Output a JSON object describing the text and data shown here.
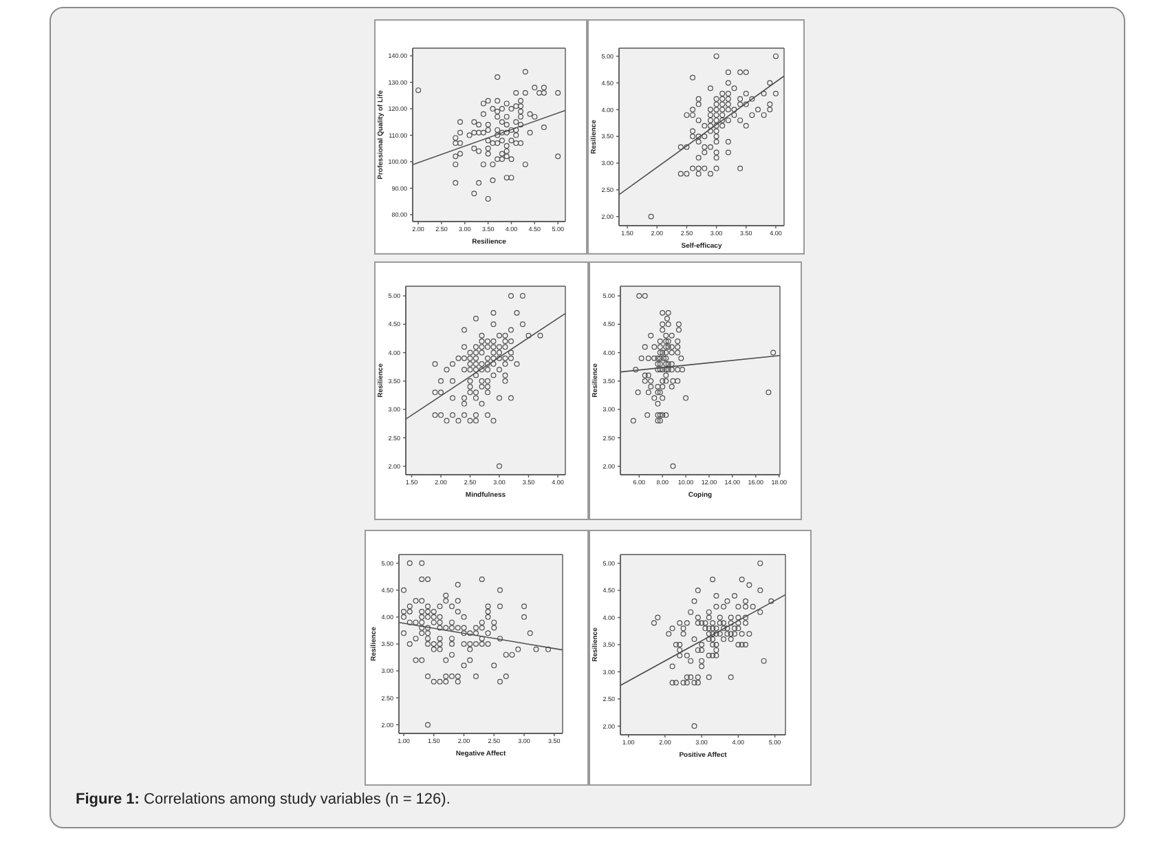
{
  "chart_data": [
    {
      "type": "scatter",
      "xlabel": "Resilience",
      "ylabel": "Professional Quality of Life",
      "marker": "circle",
      "xlim": [
        1.88,
        5.16
      ],
      "xticks": [
        {
          "value": 2,
          "label": "2.00"
        },
        {
          "value": 2.5,
          "label": "2.50"
        },
        {
          "value": 3,
          "label": "3.00"
        },
        {
          "value": 3.5,
          "label": "3.50"
        },
        {
          "value": 4,
          "label": "4.00"
        },
        {
          "value": 4.5,
          "label": "4.50"
        },
        {
          "value": 5,
          "label": "5.00"
        }
      ],
      "ylim": [
        77.4,
        142.9
      ],
      "yticks": [
        {
          "value": 80,
          "label": "80.00"
        },
        {
          "value": 90,
          "label": "90.00"
        },
        {
          "value": 100,
          "label": "100.00"
        },
        {
          "value": 110,
          "label": "110.00"
        },
        {
          "value": 120,
          "label": "120.00"
        },
        {
          "value": 130,
          "label": "130.00"
        },
        {
          "value": 140,
          "label": "140.00"
        }
      ],
      "series": [
        {
          "color": "#4d4d4d",
          "x": [
            2.0,
            2.8,
            2.8,
            2.8,
            2.8,
            2.8,
            2.9,
            2.9,
            2.9,
            2.9,
            3.1,
            3.2,
            3.2,
            3.2,
            3.2,
            3.3,
            3.3,
            3.3,
            3.3,
            3.4,
            3.4,
            3.4,
            3.4,
            3.5,
            3.5,
            3.5,
            3.5,
            3.5,
            3.5,
            3.5,
            3.6,
            3.6,
            3.6,
            3.6,
            3.7,
            3.7,
            3.7,
            3.7,
            3.7,
            3.7,
            3.7,
            3.7,
            3.8,
            3.8,
            3.8,
            3.8,
            3.8,
            3.8,
            3.9,
            3.9,
            3.9,
            3.9,
            3.9,
            3.9,
            3.9,
            3.9,
            4.0,
            4.0,
            4.0,
            4.0,
            4.0,
            4.1,
            4.1,
            4.1,
            4.1,
            4.1,
            4.1,
            4.2,
            4.2,
            4.2,
            4.2,
            4.2,
            4.2,
            4.3,
            4.3,
            4.3,
            4.4,
            4.4,
            4.5,
            4.5,
            4.6,
            4.7,
            4.7,
            4.7,
            5.0,
            5.0
          ],
          "values": [
            127,
            109,
            107,
            102,
            99,
            92,
            115,
            111,
            107,
            103,
            110,
            115,
            111,
            105,
            88,
            114,
            111,
            104,
            92,
            111,
            99,
            122,
            118,
            123,
            114,
            112,
            108,
            105,
            103,
            86,
            120,
            107,
            99,
            93,
            132,
            123,
            119,
            117,
            112,
            110,
            107,
            101,
            120,
            115,
            111,
            108,
            103,
            101,
            122,
            117,
            114,
            111,
            106,
            104,
            102,
            94,
            120,
            112,
            108,
            101,
            94,
            126,
            121,
            115,
            112,
            110,
            107,
            123,
            121,
            119,
            117,
            114,
            107,
            134,
            126,
            99,
            118,
            111,
            128,
            117,
            126,
            128,
            126,
            113,
            126,
            102
          ]
        },
        {
          "type": "line",
          "marker": "none",
          "color": "#4d4d4d",
          "x": [
            1.88,
            5.16
          ],
          "values": [
            98.9,
            119.4
          ]
        }
      ]
    },
    {
      "type": "scatter",
      "xlabel": "Self-efficacy",
      "ylabel": "Resilience",
      "marker": "circle",
      "xlim": [
        1.36,
        4.14
      ],
      "xticks": [
        {
          "value": 1.5,
          "label": "1.50"
        },
        {
          "value": 2,
          "label": "2.00"
        },
        {
          "value": 2.5,
          "label": "2.50"
        },
        {
          "value": 3,
          "label": "3.00"
        },
        {
          "value": 3.5,
          "label": "3.50"
        },
        {
          "value": 4,
          "label": "4.00"
        }
      ],
      "ylim": [
        1.83,
        5.15
      ],
      "yticks": [
        {
          "value": 2,
          "label": "2.00"
        },
        {
          "value": 2.5,
          "label": "2.50"
        },
        {
          "value": 3,
          "label": "3.00"
        },
        {
          "value": 3.5,
          "label": "3.50"
        },
        {
          "value": 4,
          "label": "4.00"
        },
        {
          "value": 4.5,
          "label": "4.50"
        },
        {
          "value": 5,
          "label": "5.00"
        }
      ],
      "series": [
        {
          "color": "#4d4d4d",
          "x": [
            3.0,
            4.0,
            3.2,
            3.4,
            3.5,
            2.6,
            3.2,
            3.9,
            2.9,
            3.3,
            3.1,
            3.2,
            3.5,
            3.8,
            4.0,
            2.7,
            3.0,
            3.1,
            3.2,
            3.4,
            3.6,
            2.7,
            3.0,
            3.1,
            3.2,
            3.4,
            3.5,
            3.9,
            2.6,
            2.9,
            3.0,
            3.1,
            3.2,
            3.3,
            3.7,
            3.9,
            2.5,
            2.6,
            2.9,
            3.0,
            3.1,
            3.3,
            3.6,
            3.8,
            2.7,
            2.9,
            3.0,
            3.1,
            3.2,
            3.4,
            2.8,
            2.9,
            3.0,
            3.1,
            3.5,
            2.6,
            2.9,
            3.0,
            2.6,
            2.7,
            2.8,
            3.0,
            2.7,
            3.0,
            3.2,
            2.4,
            2.5,
            2.8,
            2.9,
            2.8,
            3.0,
            3.2,
            2.7,
            3.0,
            2.6,
            2.7,
            2.8,
            3.0,
            3.4,
            2.4,
            2.5,
            2.7,
            2.9,
            1.9
          ],
          "values": [
            5.0,
            5.0,
            4.7,
            4.7,
            4.7,
            4.6,
            4.5,
            4.5,
            4.4,
            4.4,
            4.3,
            4.3,
            4.3,
            4.3,
            4.3,
            4.2,
            4.2,
            4.2,
            4.2,
            4.2,
            4.2,
            4.1,
            4.1,
            4.1,
            4.1,
            4.1,
            4.1,
            4.1,
            4.0,
            4.0,
            4.0,
            4.0,
            4.0,
            4.0,
            4.0,
            4.0,
            3.9,
            3.9,
            3.9,
            3.9,
            3.9,
            3.9,
            3.9,
            3.9,
            3.8,
            3.8,
            3.8,
            3.8,
            3.8,
            3.8,
            3.7,
            3.7,
            3.7,
            3.7,
            3.7,
            3.6,
            3.6,
            3.6,
            3.5,
            3.5,
            3.5,
            3.5,
            3.4,
            3.4,
            3.4,
            3.3,
            3.3,
            3.3,
            3.3,
            3.2,
            3.2,
            3.2,
            3.1,
            3.1,
            2.9,
            2.9,
            2.9,
            2.9,
            2.9,
            2.8,
            2.8,
            2.8,
            2.8,
            2.0
          ]
        },
        {
          "type": "line",
          "marker": "none",
          "color": "#4d4d4d",
          "x": [
            1.36,
            4.14
          ],
          "values": [
            2.41,
            4.63
          ]
        }
      ]
    },
    {
      "type": "scatter",
      "xlabel": "Mindfulness",
      "ylabel": "Resilience",
      "marker": "circle",
      "xlim": [
        1.4,
        4.13
      ],
      "xticks": [
        {
          "value": 1.5,
          "label": "1.50"
        },
        {
          "value": 2,
          "label": "2.00"
        },
        {
          "value": 2.5,
          "label": "2.50"
        },
        {
          "value": 3,
          "label": "3.00"
        },
        {
          "value": 3.5,
          "label": "3.50"
        },
        {
          "value": 4,
          "label": "4.00"
        }
      ],
      "ylim": [
        1.85,
        5.17
      ],
      "yticks": [
        {
          "value": 2,
          "label": "2.00"
        },
        {
          "value": 2.5,
          "label": "2.50"
        },
        {
          "value": 3,
          "label": "3.00"
        },
        {
          "value": 3.5,
          "label": "3.50"
        },
        {
          "value": 4,
          "label": "4.00"
        },
        {
          "value": 4.5,
          "label": "4.50"
        },
        {
          "value": 5,
          "label": "5.00"
        }
      ],
      "series": [
        {
          "color": "#4d4d4d",
          "x": [
            3.2,
            3.4,
            2.9,
            3.3,
            2.6,
            2.9,
            3.4,
            2.4,
            3.2,
            2.7,
            3.0,
            3.1,
            3.5,
            3.7,
            2.7,
            2.8,
            2.9,
            3.1,
            3.2,
            2.4,
            2.6,
            2.7,
            2.8,
            2.9,
            3.0,
            3.1,
            2.5,
            2.6,
            2.7,
            2.9,
            3.0,
            3.2,
            2.3,
            2.4,
            2.5,
            2.6,
            2.8,
            2.9,
            3.0,
            3.1,
            3.2,
            1.9,
            2.2,
            2.5,
            2.6,
            2.7,
            2.8,
            2.9,
            3.1,
            3.3,
            2.1,
            2.4,
            2.5,
            2.6,
            2.7,
            2.8,
            3.0,
            2.6,
            2.9,
            3.1,
            2.0,
            2.2,
            2.5,
            2.7,
            2.8,
            3.1,
            2.5,
            2.7,
            2.8,
            1.9,
            2.0,
            2.5,
            2.6,
            2.8,
            2.2,
            2.4,
            2.6,
            3.0,
            3.2,
            2.4,
            2.7,
            1.9,
            2.0,
            2.2,
            2.4,
            2.6,
            2.8,
            2.1,
            2.3,
            2.5,
            2.6,
            2.9,
            3.0
          ],
          "values": [
            5.0,
            5.0,
            4.7,
            4.7,
            4.6,
            4.5,
            4.5,
            4.4,
            4.4,
            4.3,
            4.3,
            4.3,
            4.3,
            4.3,
            4.2,
            4.2,
            4.2,
            4.2,
            4.2,
            4.1,
            4.1,
            4.1,
            4.1,
            4.1,
            4.1,
            4.1,
            4.0,
            4.0,
            4.0,
            4.0,
            4.0,
            4.0,
            3.9,
            3.9,
            3.9,
            3.9,
            3.9,
            3.9,
            3.9,
            3.9,
            3.9,
            3.8,
            3.8,
            3.8,
            3.8,
            3.8,
            3.8,
            3.8,
            3.8,
            3.8,
            3.7,
            3.7,
            3.7,
            3.7,
            3.7,
            3.7,
            3.7,
            3.6,
            3.6,
            3.6,
            3.5,
            3.5,
            3.5,
            3.5,
            3.5,
            3.5,
            3.4,
            3.4,
            3.4,
            3.3,
            3.3,
            3.3,
            3.3,
            3.3,
            3.2,
            3.2,
            3.2,
            3.2,
            3.2,
            3.1,
            3.1,
            2.9,
            2.9,
            2.9,
            2.9,
            2.9,
            2.9,
            2.8,
            2.8,
            2.8,
            2.8,
            2.8,
            2.0
          ]
        },
        {
          "type": "line",
          "marker": "none",
          "color": "#4d4d4d",
          "x": [
            1.4,
            4.13
          ],
          "values": [
            2.83,
            4.69
          ]
        }
      ]
    },
    {
      "type": "scatter",
      "xlabel": "Coping",
      "ylabel": "Resilience",
      "marker": "circle",
      "xlim": [
        4.39,
        18.08
      ],
      "xticks": [
        {
          "value": 6,
          "label": "6.00"
        },
        {
          "value": 8,
          "label": "8.00"
        },
        {
          "value": 10,
          "label": "10.00"
        },
        {
          "value": 12,
          "label": "12.00"
        },
        {
          "value": 14,
          "label": "14.00"
        },
        {
          "value": 16,
          "label": "16.00"
        },
        {
          "value": 18,
          "label": "18.00"
        }
      ],
      "ylim": [
        1.85,
        5.17
      ],
      "yticks": [
        {
          "value": 2,
          "label": "2.00"
        },
        {
          "value": 2.5,
          "label": "2.50"
        },
        {
          "value": 3,
          "label": "3.00"
        },
        {
          "value": 3.5,
          "label": "3.50"
        },
        {
          "value": 4,
          "label": "4.00"
        },
        {
          "value": 4.5,
          "label": "4.50"
        },
        {
          "value": 5,
          "label": "5.00"
        }
      ],
      "series": [
        {
          "color": "#4d4d4d",
          "x": [
            6.0,
            6.5,
            8.0,
            8.5,
            8.4,
            8.0,
            8.5,
            9.4,
            8.0,
            9.4,
            7.0,
            8.3,
            8.8,
            7.8,
            8.3,
            8.5,
            9.3,
            6.5,
            7.3,
            7.8,
            8.3,
            8.5,
            8.8,
            9.3,
            7.8,
            8.0,
            8.3,
            8.8,
            9.3,
            17.5,
            6.2,
            6.8,
            7.3,
            7.6,
            7.8,
            8.1,
            8.3,
            9.6,
            7.6,
            7.8,
            8.3,
            8.5,
            8.8,
            5.7,
            7.6,
            7.8,
            8.0,
            8.3,
            8.5,
            8.8,
            9.3,
            9.7,
            6.5,
            6.8,
            8.3,
            6.5,
            7.0,
            8.0,
            8.3,
            8.9,
            9.3,
            7.0,
            7.6,
            8.0,
            8.8,
            5.9,
            6.8,
            7.6,
            7.8,
            17.1,
            7.3,
            8.0,
            10.0,
            7.6,
            6.7,
            7.6,
            7.8,
            8.0,
            8.3,
            5.5,
            7.6,
            7.8,
            8.9
          ],
          "values": [
            5.0,
            5.0,
            4.7,
            4.7,
            4.6,
            4.5,
            4.5,
            4.5,
            4.4,
            4.4,
            4.3,
            4.3,
            4.3,
            4.2,
            4.2,
            4.2,
            4.2,
            4.1,
            4.1,
            4.1,
            4.1,
            4.1,
            4.1,
            4.1,
            4.0,
            4.0,
            4.0,
            4.0,
            4.0,
            4.0,
            3.9,
            3.9,
            3.9,
            3.9,
            3.9,
            3.9,
            3.9,
            3.9,
            3.8,
            3.8,
            3.8,
            3.8,
            3.8,
            3.7,
            3.7,
            3.7,
            3.7,
            3.7,
            3.7,
            3.7,
            3.7,
            3.7,
            3.6,
            3.6,
            3.6,
            3.5,
            3.5,
            3.5,
            3.5,
            3.5,
            3.5,
            3.4,
            3.4,
            3.4,
            3.4,
            3.3,
            3.3,
            3.3,
            3.3,
            3.3,
            3.2,
            3.2,
            3.2,
            3.1,
            2.9,
            2.9,
            2.9,
            2.9,
            2.9,
            2.8,
            2.8,
            2.8,
            2.0
          ]
        },
        {
          "type": "line",
          "marker": "none",
          "color": "#4d4d4d",
          "x": [
            4.39,
            18.08
          ],
          "values": [
            3.66,
            3.95
          ]
        }
      ]
    },
    {
      "type": "scatter",
      "xlabel": "Negative Affect",
      "ylabel": "Resilience",
      "marker": "circle",
      "xlim": [
        0.92,
        3.64
      ],
      "xticks": [
        {
          "value": 1,
          "label": "1.00"
        },
        {
          "value": 1.5,
          "label": "1.50"
        },
        {
          "value": 2,
          "label": "2.00"
        },
        {
          "value": 2.5,
          "label": "2.50"
        },
        {
          "value": 3,
          "label": "3.00"
        },
        {
          "value": 3.5,
          "label": "3.50"
        }
      ],
      "ylim": [
        1.84,
        5.16
      ],
      "yticks": [
        {
          "value": 2,
          "label": "2.00"
        },
        {
          "value": 2.5,
          "label": "2.50"
        },
        {
          "value": 3,
          "label": "3.00"
        },
        {
          "value": 3.5,
          "label": "3.50"
        },
        {
          "value": 4,
          "label": "4.00"
        },
        {
          "value": 4.5,
          "label": "4.50"
        },
        {
          "value": 5,
          "label": "5.00"
        }
      ],
      "series": [
        {
          "color": "#4d4d4d",
          "x": [
            1.1,
            1.3,
            1.3,
            1.4,
            2.3,
            1.9,
            1.0,
            2.6,
            1.7,
            1.2,
            1.3,
            1.7,
            1.9,
            1.1,
            1.4,
            1.6,
            1.8,
            2.4,
            2.6,
            3.0,
            1.0,
            1.1,
            1.3,
            1.4,
            1.5,
            1.9,
            2.4,
            1.0,
            1.3,
            1.4,
            1.5,
            1.6,
            2.0,
            2.4,
            3.0,
            1.1,
            1.2,
            1.3,
            1.5,
            1.6,
            1.8,
            2.3,
            2.5,
            1.3,
            1.4,
            1.6,
            1.7,
            1.8,
            1.9,
            2.0,
            2.2,
            2.3,
            2.5,
            1.0,
            1.3,
            1.4,
            2.0,
            2.1,
            2.2,
            2.4,
            3.1,
            1.2,
            1.4,
            1.6,
            1.8,
            2.3,
            2.6,
            1.1,
            1.4,
            1.5,
            1.6,
            1.8,
            2.0,
            2.1,
            2.2,
            2.3,
            2.4,
            1.5,
            1.6,
            2.1,
            2.9,
            3.2,
            3.4,
            1.8,
            2.7,
            2.8,
            1.2,
            1.3,
            1.7,
            2.1,
            2.0,
            2.5,
            1.4,
            1.7,
            1.8,
            1.9,
            2.2,
            2.7,
            1.5,
            1.6,
            1.7,
            1.9,
            2.6,
            1.4
          ],
          "values": [
            5.0,
            5.0,
            4.7,
            4.7,
            4.7,
            4.6,
            4.5,
            4.5,
            4.4,
            4.3,
            4.3,
            4.3,
            4.3,
            4.2,
            4.2,
            4.2,
            4.2,
            4.2,
            4.2,
            4.2,
            4.1,
            4.1,
            4.1,
            4.1,
            4.1,
            4.1,
            4.1,
            4.0,
            4.0,
            4.0,
            4.0,
            4.0,
            4.0,
            4.0,
            4.0,
            3.9,
            3.9,
            3.9,
            3.9,
            3.9,
            3.9,
            3.9,
            3.9,
            3.8,
            3.8,
            3.8,
            3.8,
            3.8,
            3.8,
            3.8,
            3.8,
            3.8,
            3.8,
            3.7,
            3.7,
            3.7,
            3.7,
            3.7,
            3.7,
            3.7,
            3.7,
            3.6,
            3.6,
            3.6,
            3.6,
            3.6,
            3.6,
            3.5,
            3.5,
            3.5,
            3.5,
            3.5,
            3.5,
            3.5,
            3.5,
            3.5,
            3.5,
            3.4,
            3.4,
            3.4,
            3.4,
            3.4,
            3.4,
            3.3,
            3.3,
            3.3,
            3.2,
            3.2,
            3.2,
            3.2,
            3.1,
            3.1,
            2.9,
            2.9,
            2.9,
            2.9,
            2.9,
            2.9,
            2.8,
            2.8,
            2.8,
            2.8,
            2.8,
            2.0
          ]
        },
        {
          "type": "line",
          "marker": "none",
          "color": "#4d4d4d",
          "x": [
            0.92,
            3.64
          ],
          "values": [
            3.9,
            3.39
          ]
        }
      ]
    },
    {
      "type": "scatter",
      "xlabel": "Positive Affect",
      "ylabel": "Resilience",
      "marker": "circle",
      "xlim": [
        0.78,
        5.29
      ],
      "xticks": [
        {
          "value": 1,
          "label": "1.00"
        },
        {
          "value": 2,
          "label": "2.00"
        },
        {
          "value": 3,
          "label": "3.00"
        },
        {
          "value": 4,
          "label": "4.00"
        },
        {
          "value": 5,
          "label": "5.00"
        }
      ],
      "ylim": [
        1.84,
        5.16
      ],
      "yticks": [
        {
          "value": 2,
          "label": "2.00"
        },
        {
          "value": 2.5,
          "label": "2.50"
        },
        {
          "value": 3,
          "label": "3.00"
        },
        {
          "value": 3.5,
          "label": "3.50"
        },
        {
          "value": 4,
          "label": "4.00"
        },
        {
          "value": 4.5,
          "label": "4.50"
        },
        {
          "value": 5,
          "label": "5.00"
        }
      ],
      "series": [
        {
          "color": "#4d4d4d",
          "x": [
            4.6,
            3.3,
            4.1,
            4.3,
            2.9,
            4.6,
            3.4,
            3.9,
            2.8,
            3.7,
            4.2,
            4.9,
            3.4,
            3.6,
            4.0,
            4.2,
            4.4,
            2.7,
            3.2,
            4.6,
            1.8,
            2.9,
            3.2,
            3.5,
            3.8,
            4.0,
            4.2,
            1.7,
            2.4,
            2.6,
            2.9,
            3.0,
            3.1,
            3.3,
            3.5,
            3.6,
            3.8,
            4.0,
            4.2,
            2.2,
            2.5,
            3.1,
            3.2,
            3.3,
            3.4,
            3.6,
            3.7,
            3.9,
            4.0,
            2.1,
            2.5,
            3.2,
            3.3,
            3.4,
            3.5,
            3.7,
            3.8,
            3.9,
            4.1,
            4.3,
            2.8,
            3.2,
            3.3,
            3.6,
            3.8,
            2.3,
            2.4,
            3.0,
            3.3,
            3.4,
            4.0,
            4.1,
            4.2,
            2.4,
            2.9,
            3.0,
            3.4,
            2.4,
            2.6,
            3.2,
            3.3,
            3.4,
            2.7,
            3.0,
            4.7,
            2.2,
            3.0,
            2.6,
            2.7,
            2.9,
            3.2,
            3.8,
            2.2,
            2.3,
            2.5,
            2.6,
            2.8,
            2.9,
            2.8
          ],
          "values": [
            5.0,
            4.7,
            4.7,
            4.6,
            4.5,
            4.5,
            4.4,
            4.4,
            4.3,
            4.3,
            4.3,
            4.3,
            4.2,
            4.2,
            4.2,
            4.2,
            4.2,
            4.1,
            4.1,
            4.1,
            4.0,
            4.0,
            4.0,
            4.0,
            4.0,
            4.0,
            4.0,
            3.9,
            3.9,
            3.9,
            3.9,
            3.9,
            3.9,
            3.9,
            3.9,
            3.9,
            3.9,
            3.9,
            3.9,
            3.8,
            3.8,
            3.8,
            3.8,
            3.8,
            3.8,
            3.8,
            3.8,
            3.8,
            3.8,
            3.7,
            3.7,
            3.7,
            3.7,
            3.7,
            3.7,
            3.7,
            3.7,
            3.7,
            3.7,
            3.7,
            3.6,
            3.6,
            3.6,
            3.6,
            3.6,
            3.5,
            3.5,
            3.5,
            3.5,
            3.5,
            3.5,
            3.5,
            3.5,
            3.4,
            3.4,
            3.4,
            3.4,
            3.3,
            3.3,
            3.3,
            3.3,
            3.3,
            3.2,
            3.2,
            3.2,
            3.1,
            3.1,
            2.9,
            2.9,
            2.9,
            2.9,
            2.9,
            2.8,
            2.8,
            2.8,
            2.8,
            2.8,
            2.8,
            2.0
          ]
        },
        {
          "type": "line",
          "marker": "none",
          "color": "#4d4d4d",
          "x": [
            0.78,
            5.29
          ],
          "values": [
            2.75,
            4.42
          ]
        }
      ],
      "annotations": [
        "Figure 1: Correlations among study variables (n = 126)."
      ]
    }
  ]
}
